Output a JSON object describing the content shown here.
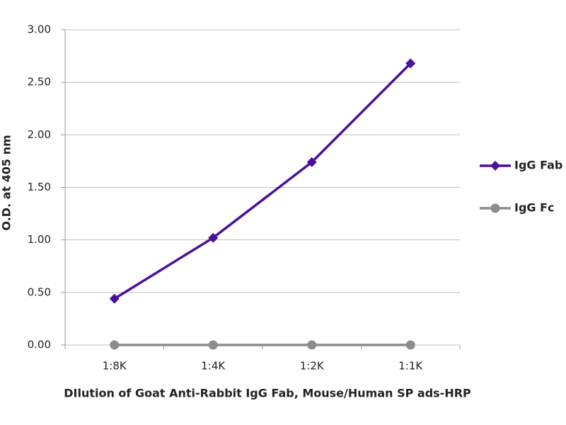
{
  "chart_data": {
    "type": "line",
    "x_label": "DIlution of Goat Anti-Rabbit IgG Fab, Mouse/Human SP ads-HRP",
    "y_label": "O.D. at 405 nm",
    "categories": [
      "1:8K",
      "1:4K",
      "1:2K",
      "1:1K"
    ],
    "series": [
      {
        "name": "IgG Fab",
        "color": "#4b0f9e",
        "marker": "diamond",
        "values": [
          0.44,
          1.02,
          1.74,
          2.68
        ]
      },
      {
        "name": "IgG Fc",
        "color": "#8c8c8c",
        "marker": "circle",
        "values": [
          0,
          0,
          0,
          0
        ]
      }
    ],
    "ylim": [
      0,
      3
    ],
    "yticks": [
      {
        "value": 0,
        "label": "0.00"
      },
      {
        "value": 0.5,
        "label": "0.50"
      },
      {
        "value": 1,
        "label": "1.00"
      },
      {
        "value": 1.5,
        "label": "1.50"
      },
      {
        "value": 2,
        "label": "2.00"
      },
      {
        "value": 2.5,
        "label": "2.50"
      },
      {
        "value": 3,
        "label": "3.00"
      }
    ],
    "grid": true,
    "legend": "right"
  }
}
